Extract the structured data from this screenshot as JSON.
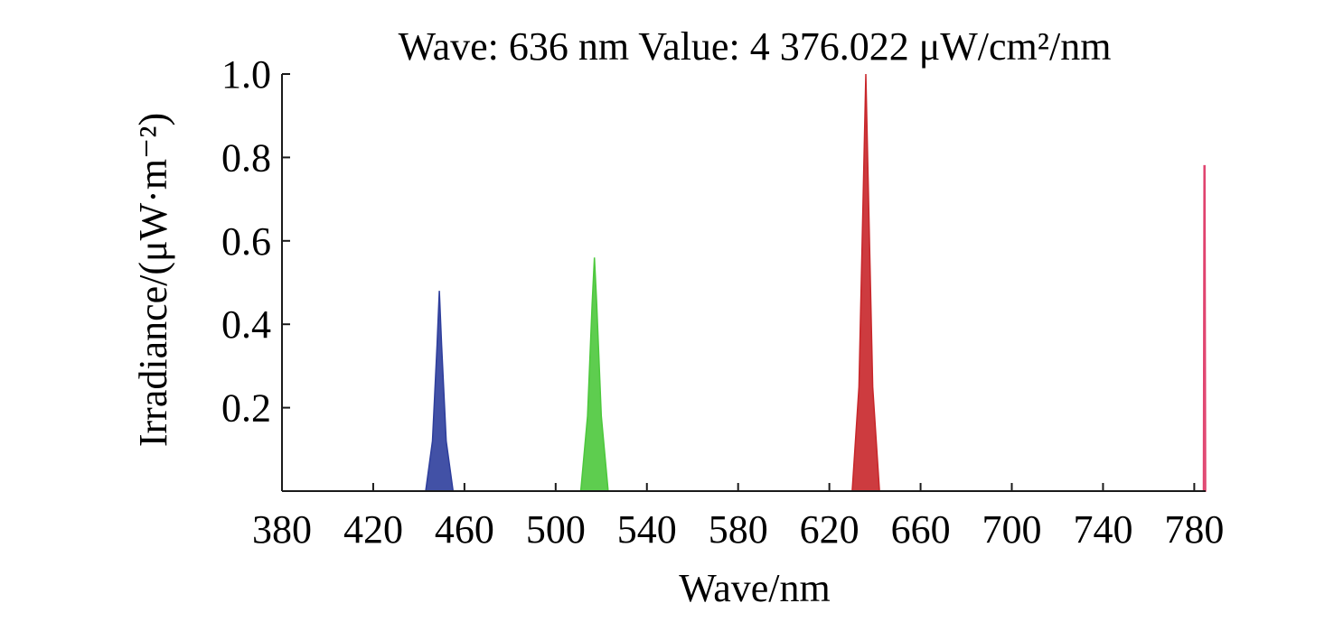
{
  "chart_data": {
    "type": "area",
    "title": "Wave: 636 nm Value: 4 376.022 μW/cm²/nm",
    "xlabel": "Wave/nm",
    "ylabel": "Irradiance/(μW·m⁻²)",
    "xlim": [
      380,
      785
    ],
    "ylim": [
      0,
      1.0
    ],
    "xticks": [
      380,
      420,
      460,
      500,
      540,
      580,
      620,
      660,
      700,
      740,
      780
    ],
    "yticks": [
      0.2,
      0.4,
      0.6,
      0.8,
      1.0
    ],
    "ytick_labels": [
      "0.2",
      "0.4",
      "0.6",
      "0.8",
      "1.0"
    ],
    "grid": false,
    "series": [
      {
        "color": "#2e3e9c",
        "points": [
          [
            443,
            0
          ],
          [
            446,
            0.12
          ],
          [
            448,
            0.35
          ],
          [
            449,
            0.48
          ],
          [
            450,
            0.35
          ],
          [
            452,
            0.12
          ],
          [
            455,
            0
          ]
        ]
      },
      {
        "color": "#4cc83c",
        "points": [
          [
            511,
            0
          ],
          [
            514,
            0.18
          ],
          [
            516,
            0.45
          ],
          [
            517,
            0.56
          ],
          [
            518,
            0.45
          ],
          [
            520,
            0.18
          ],
          [
            523,
            0
          ]
        ]
      },
      {
        "color": "#c8262a",
        "points": [
          [
            630,
            0
          ],
          [
            633,
            0.25
          ],
          [
            635,
            0.75
          ],
          [
            636,
            1.0
          ],
          [
            637,
            0.75
          ],
          [
            639,
            0.25
          ],
          [
            642,
            0
          ]
        ]
      },
      {
        "color": "#e0426e",
        "points": [
          [
            784,
            0
          ],
          [
            784.3,
            0.78
          ],
          [
            784.7,
            0.78
          ],
          [
            785,
            0
          ]
        ]
      }
    ]
  }
}
